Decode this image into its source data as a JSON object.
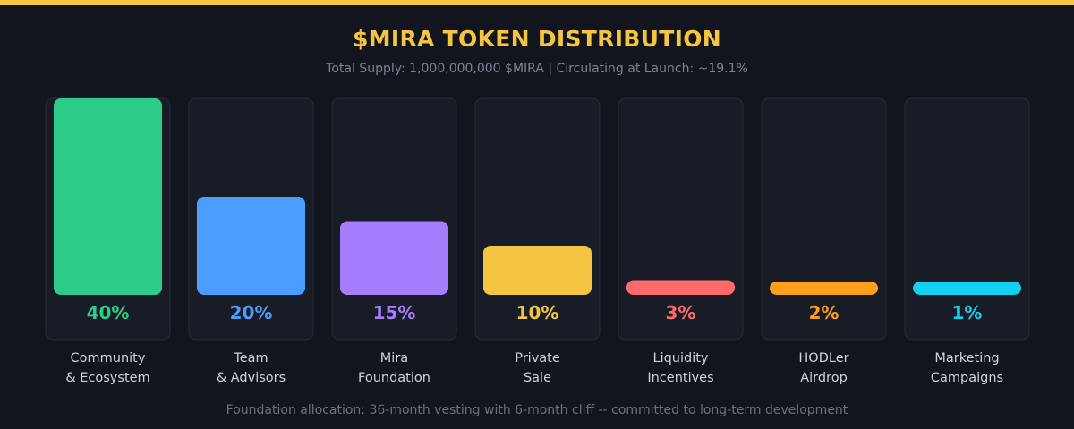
{
  "header": {
    "title": "$MIRA TOKEN DISTRIBUTION",
    "subtitle": "Total Supply: 1,000,000,000 $MIRA  |  Circulating at Launch: ~19.1%"
  },
  "footer": {
    "note": "Foundation allocation: 36-month vesting with 6-month cliff -- committed to long-term development"
  },
  "chart_data": {
    "type": "bar",
    "title": "$MIRA TOKEN DISTRIBUTION",
    "xlabel": "",
    "ylabel": "",
    "ylim": [
      0,
      40
    ],
    "grid": false,
    "legend": "none",
    "categories": [
      [
        "Community",
        "& Ecosystem"
      ],
      [
        "Team",
        "& Advisors"
      ],
      [
        "Mira",
        "Foundation"
      ],
      [
        "Private",
        "Sale"
      ],
      [
        "Liquidity",
        "Incentives"
      ],
      [
        "HODLer",
        "Airdrop"
      ],
      [
        "Marketing",
        "Campaigns"
      ]
    ],
    "values": [
      40,
      20,
      15,
      10,
      3,
      2,
      1
    ],
    "value_labels": [
      "40%",
      "20%",
      "15%",
      "10%",
      "3%",
      "2%",
      "1%"
    ],
    "colors": [
      "#2ecc8a",
      "#4a9eff",
      "#a77dff",
      "#f5c542",
      "#ff6b6b",
      "#ff9f1a",
      "#12d0f0"
    ]
  }
}
